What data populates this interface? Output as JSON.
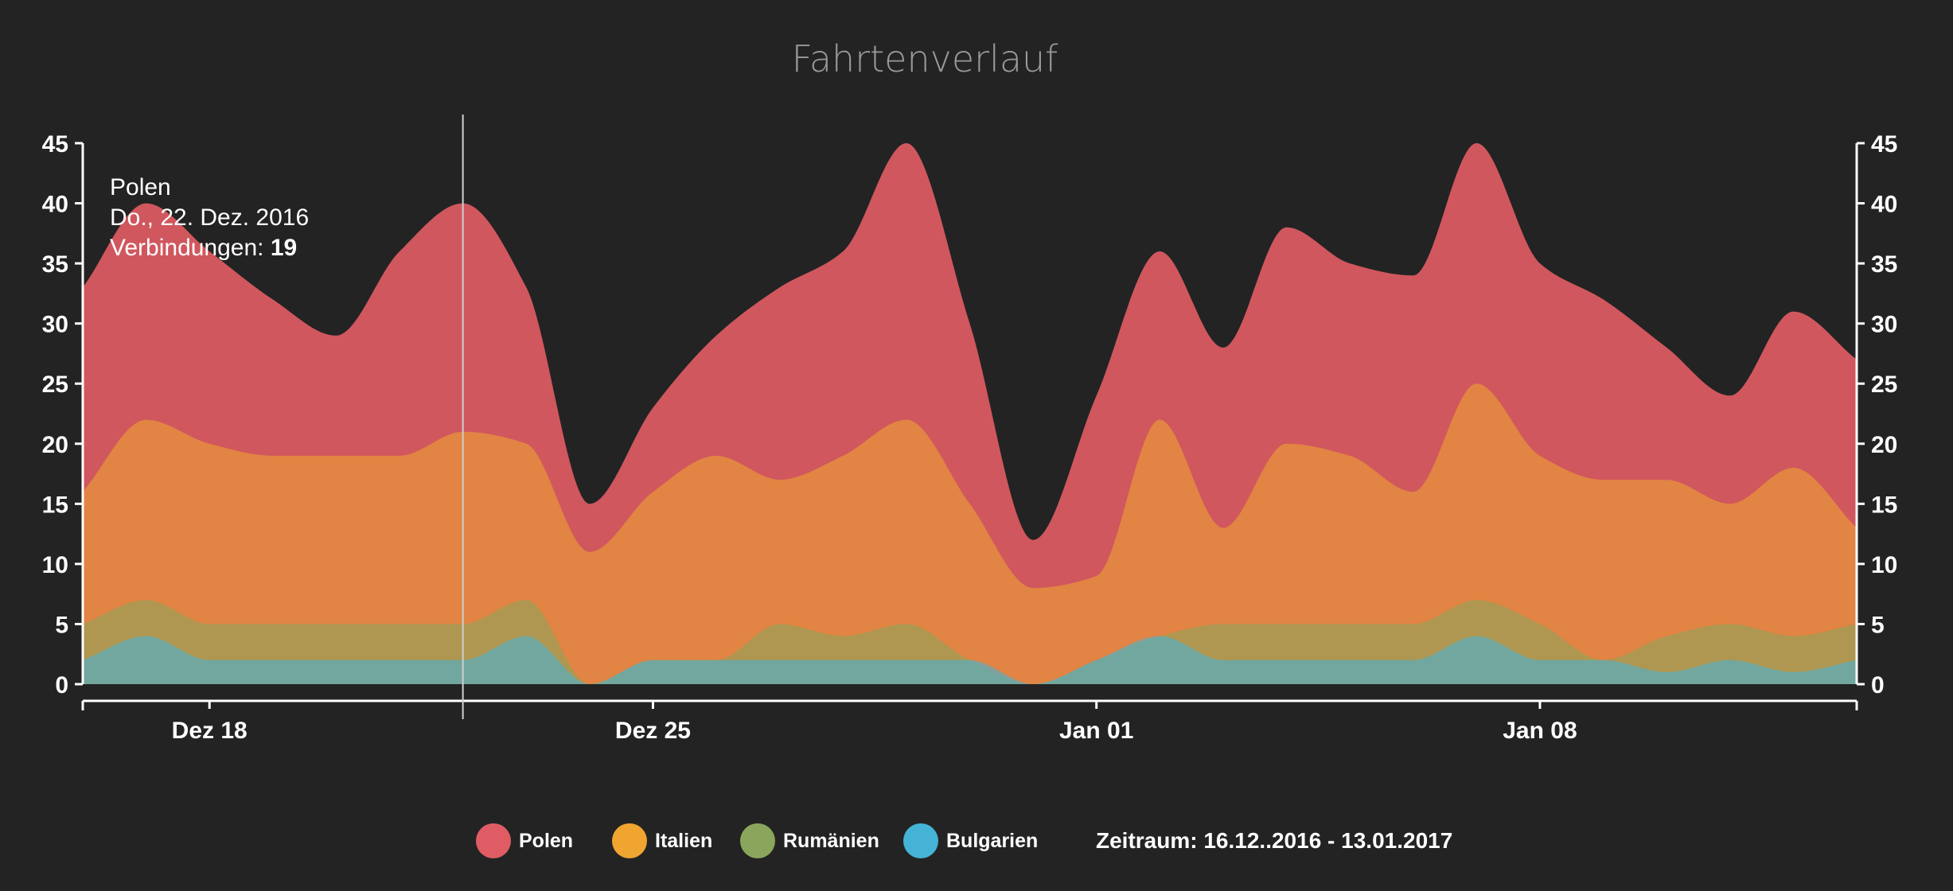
{
  "chart_data": {
    "type": "area",
    "title": "Fahrtenverlauf",
    "x": [
      "2016-12-16",
      "2016-12-17",
      "2016-12-18",
      "2016-12-19",
      "2016-12-20",
      "2016-12-21",
      "2016-12-22",
      "2016-12-23",
      "2016-12-24",
      "2016-12-25",
      "2016-12-26",
      "2016-12-27",
      "2016-12-28",
      "2016-12-29",
      "2016-12-30",
      "2016-12-31",
      "2017-01-01",
      "2017-01-02",
      "2017-01-03",
      "2017-01-04",
      "2017-01-05",
      "2017-01-06",
      "2017-01-07",
      "2017-01-08",
      "2017-01-09",
      "2017-01-10",
      "2017-01-11",
      "2017-01-12",
      "2017-01-13"
    ],
    "x_tick_labels": [
      {
        "date": "2016-12-18",
        "label": "Dez 18"
      },
      {
        "date": "2016-12-25",
        "label": "Dez 25"
      },
      {
        "date": "2017-01-01",
        "label": "Jan 01"
      },
      {
        "date": "2017-01-08",
        "label": "Jan 08"
      }
    ],
    "y_ticks": [
      0,
      5,
      10,
      15,
      20,
      25,
      30,
      35,
      40,
      45
    ],
    "ylim": [
      0,
      45
    ],
    "stacked": true,
    "series": [
      {
        "name": "Bulgarien",
        "color": "#45b3d6",
        "values": [
          2,
          4,
          2,
          2,
          2,
          2,
          2,
          4,
          0,
          2,
          2,
          2,
          2,
          2,
          2,
          0,
          2,
          4,
          2,
          2,
          2,
          2,
          4,
          2,
          2,
          1,
          2,
          1,
          2
        ]
      },
      {
        "name": "Rumänien",
        "color": "#8aa65c",
        "values": [
          3,
          3,
          3,
          3,
          3,
          3,
          3,
          3,
          0,
          0,
          0,
          3,
          2,
          3,
          0,
          0,
          0,
          0,
          3,
          3,
          3,
          3,
          3,
          3,
          0,
          3,
          3,
          3,
          3
        ]
      },
      {
        "name": "Italien",
        "color": "#f0a530",
        "values": [
          11,
          15,
          15,
          14,
          14,
          14,
          16,
          13,
          11,
          14,
          17,
          12,
          15,
          17,
          13,
          8,
          7,
          18,
          8,
          15,
          14,
          11,
          18,
          14,
          15,
          13,
          10,
          14,
          8
        ]
      },
      {
        "name": "Polen",
        "color": "#e05c64",
        "values": [
          17,
          18,
          16,
          13,
          10,
          17,
          19,
          13,
          4,
          7,
          10,
          16,
          17,
          23,
          15,
          4,
          15,
          14,
          15,
          18,
          16,
          18,
          20,
          16,
          15,
          11,
          9,
          13,
          14
        ]
      }
    ],
    "tooltip": {
      "series": "Polen",
      "date_label": "Do., 22. Dez. 2016",
      "value_label": "Verbindungen: ",
      "value": "19",
      "date": "2016-12-22"
    },
    "legend_placement": "bottom",
    "period_text": "Zeitraum: 16.12..2016 - 13.01.2017",
    "axis_color": "#ffffff",
    "background": "#232323"
  }
}
